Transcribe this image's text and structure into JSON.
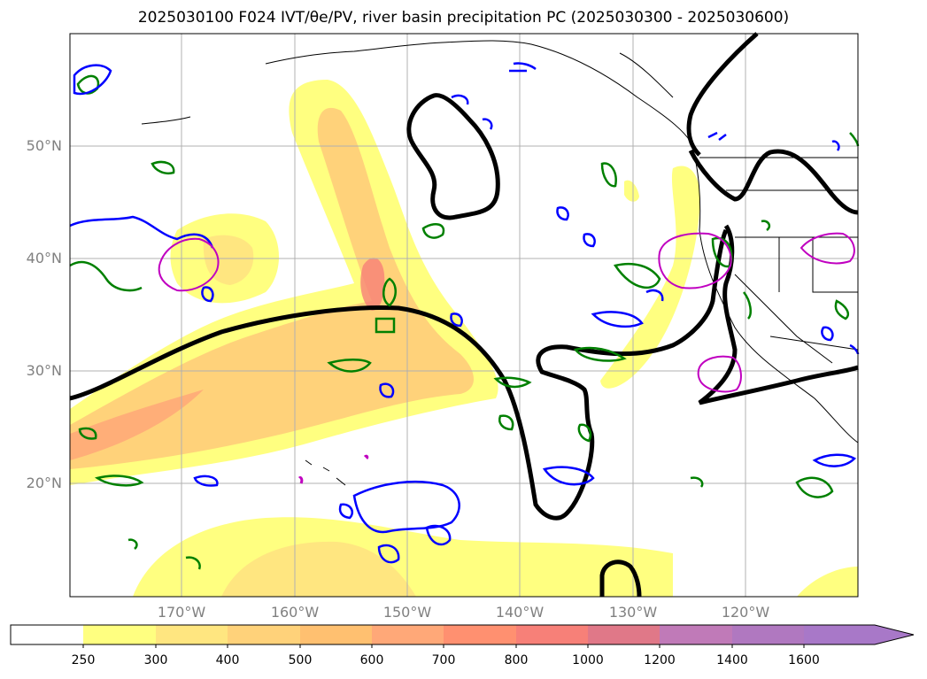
{
  "title": "2025030100 F024 IVT/θe/PV, river basin precipitation PC (2025030300 - 2025030600)",
  "lat_labels": [
    "50°N",
    "40°N",
    "30°N",
    "20°N"
  ],
  "lon_labels": [
    "170°W",
    "160°W",
    "150°W",
    "140°W",
    "130°W",
    "120°W"
  ],
  "colorbar": {
    "levels": [
      "250",
      "300",
      "400",
      "500",
      "600",
      "700",
      "800",
      "1000",
      "1200",
      "1400",
      "1600"
    ],
    "colors": [
      "#ffffff",
      "#ffff80",
      "#ffe680",
      "#ffd27a",
      "#ffc070",
      "#ffa878",
      "#ff9070",
      "#f78078",
      "#e07888",
      "#c07ab8",
      "#a878c8"
    ],
    "extend": "max"
  },
  "colors": {
    "ivt_fill_light": "#ffff80",
    "ivt_fill_mid": "#ffd27a",
    "ivt_fill_high": "#ffa878",
    "theta_e_contour": "#000000",
    "pv_blue": "#0000ff",
    "pv_green": "#008000",
    "basin_magenta": "#c000c0",
    "grid": "#b0b0b0",
    "label": "#808080"
  }
}
